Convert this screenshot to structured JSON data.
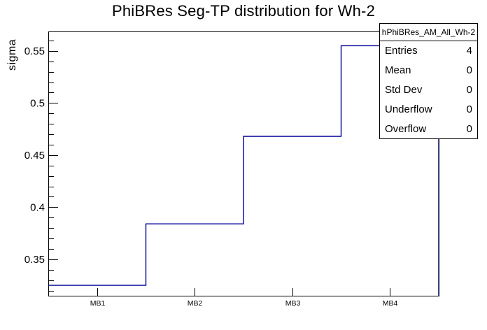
{
  "stats_box": {
    "header": "hPhiBRes_AM_All_Wh-2",
    "rows": [
      {
        "label": "Entries",
        "value": "4"
      },
      {
        "label": "Mean",
        "value": "0"
      },
      {
        "label": "Std Dev",
        "value": "0"
      },
      {
        "label": "Underflow",
        "value": "0"
      },
      {
        "label": "Overflow",
        "value": "0"
      }
    ]
  },
  "chart_data": {
    "type": "bar",
    "style": "root-step-histogram-outline",
    "title": "PhiBRes Seg-TP distribution for Wh-2",
    "xlabel": "",
    "ylabel": "sigma",
    "categories": [
      "MB1",
      "MB2",
      "MB3",
      "MB4"
    ],
    "values": [
      0.325,
      0.384,
      0.468,
      0.555
    ],
    "ylim": [
      0.315,
      0.5687
    ],
    "y_ticks": {
      "major": [
        0.35,
        0.4,
        0.45,
        0.5,
        0.55
      ],
      "major_labels": [
        "0.35",
        "0.4",
        "0.45",
        "0.5",
        "0.55"
      ],
      "minor_from": 0.32,
      "minor_to": 0.56,
      "minor_step": 0.01
    },
    "grid": false,
    "line_color": "#000099",
    "frame_color": "#000000",
    "background_color": "#ffffff",
    "legend_position": "none"
  }
}
